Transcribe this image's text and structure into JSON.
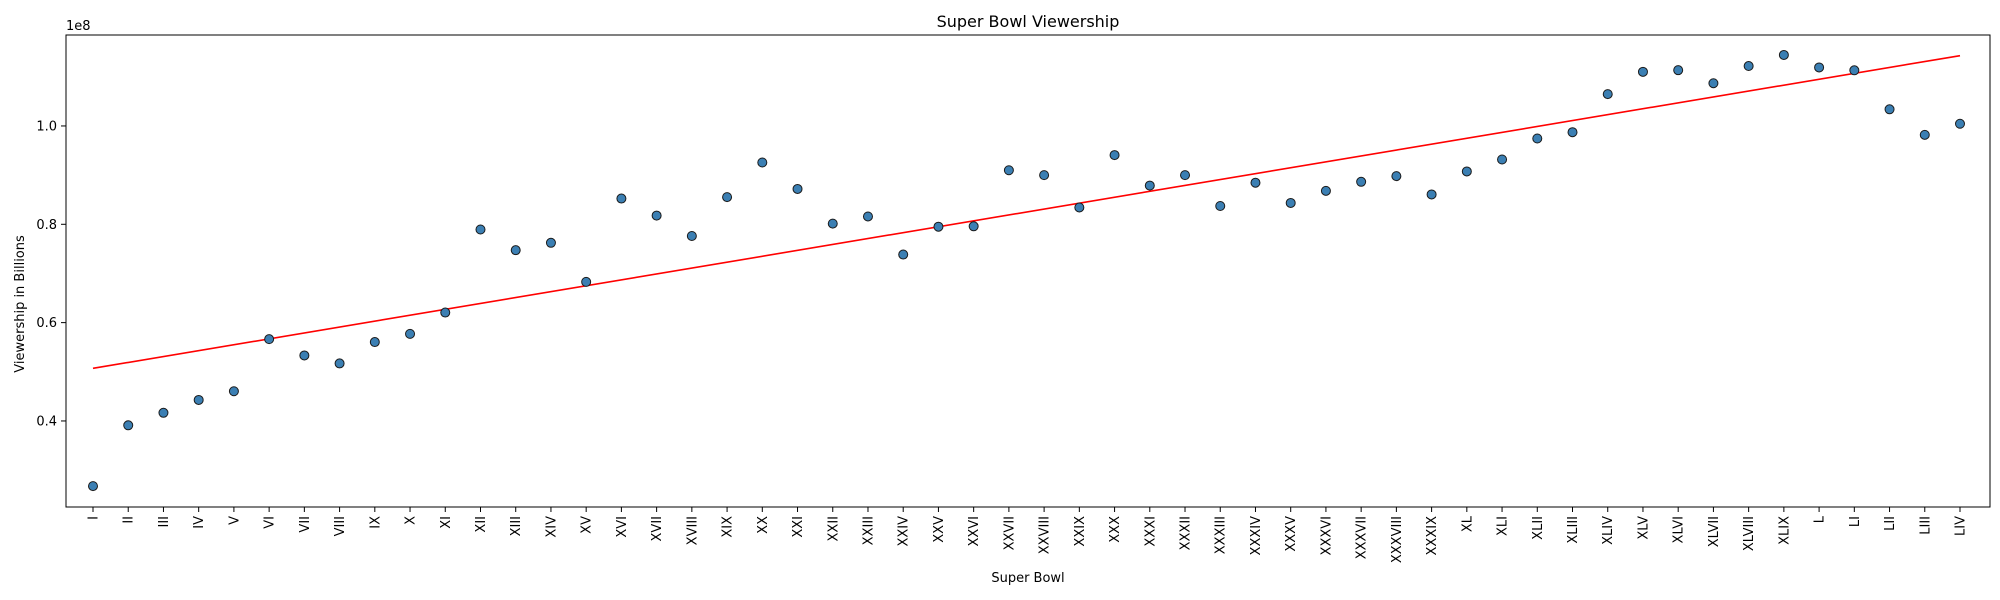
{
  "chart_data": {
    "type": "scatter",
    "title": "Super Bowl Viewership",
    "xlabel": "Super Bowl",
    "ylabel": "Viewership in Billions",
    "offset_label": "1e8",
    "y_tick_labels": [
      "0.4",
      "0.6",
      "0.8",
      "1.0"
    ],
    "y_tick_values": [
      40000000,
      60000000,
      80000000,
      100000000
    ],
    "ylim": [
      22500000,
      118500000
    ],
    "grid": false,
    "colors": {
      "marker_fill": "#3b7fb3",
      "marker_edge": "#1a1a1a",
      "trend": "#ff0000"
    },
    "categories": [
      "I",
      "II",
      "III",
      "IV",
      "V",
      "VI",
      "VII",
      "VIII",
      "IX",
      "X",
      "XI",
      "XII",
      "XIII",
      "XIV",
      "XV",
      "XVI",
      "XVII",
      "XVIII",
      "XIX",
      "XX",
      "XXI",
      "XXII",
      "XXIII",
      "XXIV",
      "XXV",
      "XXVI",
      "XXVII",
      "XXVIII",
      "XXIX",
      "XXX",
      "XXXI",
      "XXXII",
      "XXXIII",
      "XXXIV",
      "XXXV",
      "XXXVI",
      "XXXVII",
      "XXXVIII",
      "XXXIX",
      "XL",
      "XLI",
      "XLII",
      "XLIII",
      "XLIV",
      "XLV",
      "XLVI",
      "XLVII",
      "XLVIII",
      "XLIX",
      "L",
      "LI",
      "LII",
      "LIII",
      "LIV"
    ],
    "values": [
      26750000,
      39120000,
      41660000,
      44270000,
      46040000,
      56640000,
      53320000,
      51700000,
      56050000,
      57710000,
      62050000,
      78940000,
      74740000,
      76240000,
      68290000,
      85240000,
      81770000,
      77620000,
      85530000,
      92570000,
      87190000,
      80140000,
      81590000,
      73850000,
      79510000,
      79590000,
      90990000,
      90000000,
      83420000,
      94080000,
      87870000,
      90000000,
      83720000,
      88460000,
      84340000,
      86800000,
      88640000,
      89800000,
      86070000,
      90750000,
      93180000,
      97450000,
      98730000,
      106480000,
      111010000,
      111350000,
      108690000,
      112190000,
      114440000,
      111900000,
      111320000,
      103390000,
      98190000,
      100450000
    ],
    "trendline": {
      "start": 50700000,
      "end": 114300000
    }
  }
}
